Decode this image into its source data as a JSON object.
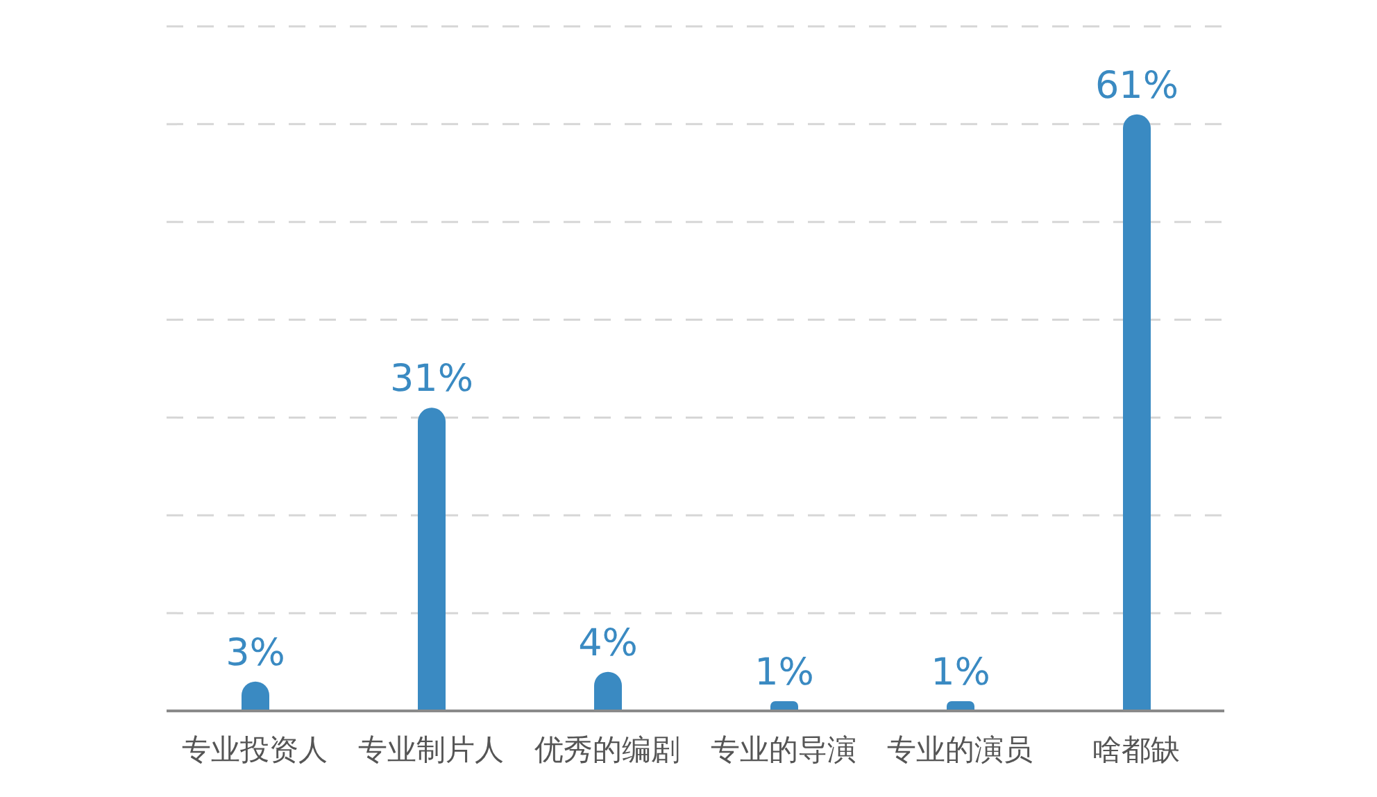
{
  "chart_data": {
    "type": "bar",
    "categories": [
      "专业投资人",
      "专业制片人",
      "优秀的编剧",
      "专业的导演",
      "专业的演员",
      "啥都缺"
    ],
    "values": [
      3,
      31,
      4,
      1,
      1,
      61
    ],
    "value_labels": [
      "3%",
      "31%",
      "4%",
      "1%",
      "1%",
      "61%"
    ],
    "color": "#3a8ac2",
    "ylim": [
      0,
      70
    ],
    "yticks": [
      {
        "value": 0,
        "label": null
      },
      {
        "value": 10,
        "label": null
      },
      {
        "value": 20,
        "label": null
      },
      {
        "value": 30,
        "label": null
      },
      {
        "value": 40,
        "label": null
      },
      {
        "value": 50,
        "label": null
      },
      {
        "value": 60,
        "label": null
      },
      {
        "value": 70,
        "label": null
      }
    ],
    "grid": "y",
    "tick_labels": "x"
  }
}
